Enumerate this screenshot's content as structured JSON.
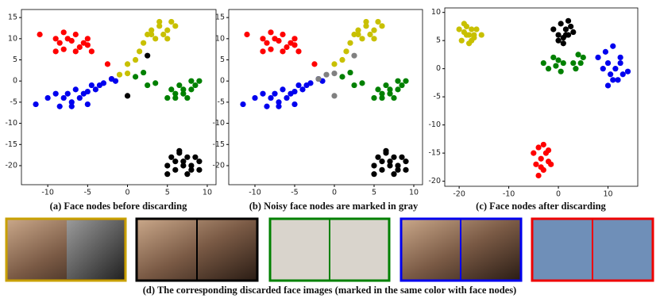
{
  "chart_data": [
    {
      "type": "scatter",
      "caption": "(a) Face nodes before discarding",
      "xlim": [
        -13.3,
        11.1
      ],
      "ylim": [
        -24.5,
        16.9
      ],
      "xticks": [
        -10,
        -5,
        0,
        5,
        10
      ],
      "yticks": [
        -20,
        -15,
        -10,
        -5,
        0,
        5,
        10,
        15
      ],
      "series": [
        {
          "color": "#ff0000",
          "x": [
            -11,
            -9,
            -8.5,
            -8,
            -7.5,
            -7,
            -6.5,
            -6,
            -5.5,
            -5,
            -4.5,
            -8,
            -6.5,
            -5,
            -9,
            -2.5,
            -2
          ],
          "y": [
            11,
            10,
            9,
            11.5,
            10,
            9.5,
            11,
            8,
            9,
            10,
            7,
            7.5,
            7,
            8.5,
            7,
            4,
            0.5
          ]
        },
        {
          "color": "#0000ee",
          "x": [
            -11.5,
            -10,
            -9,
            -8.5,
            -8,
            -7.5,
            -7,
            -6.5,
            -6,
            -5.5,
            -5,
            -4.5,
            -4,
            -3.5,
            -3,
            -2,
            -1.5,
            -7,
            -5
          ],
          "y": [
            -5.5,
            -4,
            -3,
            -6,
            -4,
            -3,
            -5,
            -2,
            -4,
            -3,
            -2.5,
            -1,
            -2,
            -1,
            -0.5,
            0.5,
            0,
            -6,
            -5.5
          ]
        },
        {
          "color": "#c8c000",
          "x": [
            0,
            1,
            1.5,
            2,
            2.5,
            3,
            3.5,
            4,
            4.5,
            5,
            5.5,
            6,
            3,
            4,
            5,
            -1,
            0
          ],
          "y": [
            4,
            5,
            7,
            9,
            11,
            12,
            10,
            13,
            11,
            12,
            14,
            13,
            11,
            14,
            10,
            1.5,
            1.8
          ]
        },
        {
          "color": "#008000",
          "x": [
            1,
            2,
            2.5,
            3.5,
            5,
            5.5,
            6,
            6.5,
            7,
            7.5,
            8,
            8.5,
            9,
            7,
            6,
            8
          ],
          "y": [
            1,
            2,
            -1,
            -0.5,
            -4,
            -2,
            -3,
            -1,
            -2,
            -4,
            0,
            -1,
            0,
            -3,
            -4,
            -2
          ]
        },
        {
          "color": "#000000",
          "x": [
            5,
            5.5,
            6,
            6.5,
            7,
            7.5,
            8,
            8.5,
            9,
            5,
            6,
            7,
            8,
            9,
            6.5,
            7.5,
            0,
            2.5
          ],
          "y": [
            -20,
            -18,
            -21,
            -17,
            -19,
            -22,
            -20,
            -18,
            -21,
            -22,
            -19,
            -20,
            -21,
            -19,
            -16.5,
            -18,
            -3.5,
            6
          ]
        }
      ]
    },
    {
      "type": "scatter",
      "caption": "(b) Noisy face nodes are marked in gray",
      "xlim": [
        -13.3,
        11.1
      ],
      "ylim": [
        -24.5,
        16.9
      ],
      "xticks": [
        -10,
        -5,
        0,
        5,
        10
      ],
      "yticks": [
        -20,
        -15,
        -10,
        -5,
        0,
        5,
        10,
        15
      ],
      "series": [
        {
          "color": "#ff0000",
          "x": [
            -11,
            -9,
            -8.5,
            -8,
            -7.5,
            -7,
            -6.5,
            -6,
            -5.5,
            -5,
            -4.5,
            -8,
            -6.5,
            -5,
            -9,
            -2.5
          ],
          "y": [
            11,
            10,
            9,
            11.5,
            10,
            9.5,
            11,
            8,
            9,
            10,
            7,
            7.5,
            7,
            8.5,
            7,
            4
          ]
        },
        {
          "color": "#0000ee",
          "x": [
            -11.5,
            -10,
            -9,
            -8.5,
            -8,
            -7.5,
            -7,
            -6.5,
            -6,
            -5.5,
            -5,
            -4.5,
            -4,
            -3.5,
            -3,
            -2,
            -1.5,
            -7,
            -5
          ],
          "y": [
            -5.5,
            -4,
            -3,
            -6,
            -4,
            -3,
            -5,
            -2,
            -4,
            -3,
            -2.5,
            -1,
            -2,
            -1,
            -0.5,
            0.5,
            0,
            -6,
            -5.5
          ]
        },
        {
          "color": "#c8c000",
          "x": [
            0,
            1,
            1.5,
            2,
            2.5,
            3,
            3.5,
            4,
            4.5,
            5,
            5.5,
            6,
            3,
            4,
            5
          ],
          "y": [
            4,
            5,
            7,
            9,
            11,
            12,
            10,
            13,
            11,
            12,
            14,
            13,
            11,
            14,
            10
          ]
        },
        {
          "color": "#008000",
          "x": [
            1,
            2,
            2.5,
            3.5,
            5,
            5.5,
            6,
            6.5,
            7,
            7.5,
            8,
            8.5,
            9,
            7,
            6,
            8
          ],
          "y": [
            1,
            2,
            -1,
            -0.5,
            -4,
            -2,
            -3,
            -1,
            -2,
            -4,
            0,
            -1,
            0,
            -3,
            -4,
            -2
          ]
        },
        {
          "color": "#000000",
          "x": [
            5,
            5.5,
            6,
            6.5,
            7,
            7.5,
            8,
            8.5,
            9,
            5,
            6,
            7,
            8,
            9,
            6.5,
            7.5
          ],
          "y": [
            -20,
            -18,
            -21,
            -17,
            -19,
            -22,
            -20,
            -18,
            -21,
            -22,
            -19,
            -20,
            -21,
            -19,
            -16.5,
            -18
          ]
        },
        {
          "color": "#808080",
          "x": [
            -2,
            -1,
            0,
            0,
            2.5
          ],
          "y": [
            0.5,
            1.5,
            1.8,
            -3.5,
            6
          ]
        }
      ]
    },
    {
      "type": "scatter",
      "caption": "(c) Face nodes after discarding",
      "xlim": [
        -22.9,
        16
      ],
      "ylim": [
        -20.9,
        10.8
      ],
      "xticks": [
        -20,
        -10,
        0,
        10
      ],
      "yticks": [
        -20,
        -15,
        -10,
        -5,
        0,
        5,
        10
      ],
      "series": [
        {
          "color": "#c8c000",
          "x": [
            -20,
            -19.5,
            -19,
            -18.5,
            -18,
            -17.5,
            -17,
            -16.5,
            -18,
            -19,
            -17,
            -15.5,
            -18.5,
            -17.5
          ],
          "y": [
            7,
            5,
            8,
            6,
            4.5,
            7,
            5.5,
            7,
            6,
            6.5,
            6,
            6,
            7.5,
            5
          ]
        },
        {
          "color": "#000000",
          "x": [
            -1,
            0,
            0.5,
            1,
            1.5,
            2,
            2.5,
            3,
            1,
            0,
            2,
            1.5
          ],
          "y": [
            7,
            6,
            8,
            5.5,
            7,
            6,
            7.5,
            6.5,
            4.5,
            5,
            8.5,
            6
          ]
        },
        {
          "color": "#008000",
          "x": [
            -3,
            -2,
            -1,
            -0.5,
            0,
            0.5,
            1,
            3,
            4,
            4.5,
            5,
            3.5
          ],
          "y": [
            1,
            0,
            2,
            0.5,
            1.5,
            -0.5,
            1,
            1,
            2.5,
            1,
            2,
            0
          ]
        },
        {
          "color": "#0000ee",
          "x": [
            8,
            9,
            9.5,
            10,
            10.5,
            11,
            11.5,
            12,
            12.5,
            13,
            14,
            10,
            11,
            12.5
          ],
          "y": [
            2,
            0,
            3,
            1,
            -1,
            4,
            0,
            -2,
            1,
            -1,
            -0.5,
            -3,
            -2,
            2
          ]
        },
        {
          "color": "#ff0000",
          "x": [
            -5,
            -4.5,
            -4,
            -3.5,
            -3,
            -2.5,
            -2,
            -1.5,
            -4,
            -3,
            -2,
            -3.5
          ],
          "y": [
            -15,
            -17,
            -14,
            -16,
            -18,
            -15,
            -16.5,
            -17,
            -19,
            -13.5,
            -14.5,
            -17.5
          ]
        }
      ]
    }
  ],
  "images_caption": "(d) The corresponding discarded face images (marked in the same color with face nodes)"
}
